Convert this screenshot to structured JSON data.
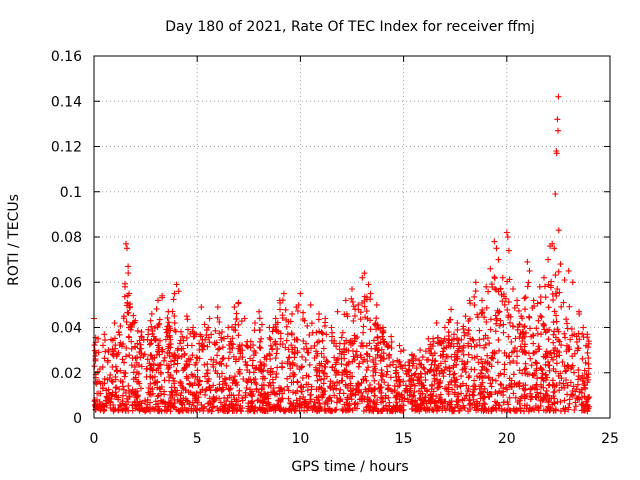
{
  "chart_data": {
    "type": "scatter",
    "title": "Day 180 of 2021, Rate Of TEC Index for receiver ffmj",
    "xlabel": "GPS time / hours",
    "ylabel": "ROTI / TECUs",
    "xlim": [
      0,
      25
    ],
    "ylim": [
      0,
      0.16
    ],
    "xticks": [
      0,
      5,
      10,
      15,
      20,
      25
    ],
    "xtick_labels": [
      "0",
      "5",
      "10",
      "15",
      "20",
      "25"
    ],
    "yticks": [
      0,
      0.02,
      0.04,
      0.06,
      0.08,
      0.1,
      0.12,
      0.14,
      0.16
    ],
    "ytick_labels": [
      "0",
      "0.02",
      "0.04",
      "0.06",
      "0.08",
      "0.1",
      "0.12",
      "0.14",
      "0.16"
    ],
    "grid": true,
    "marker": "+",
    "color": "#ff0000",
    "data_range_hours": [
      0,
      24
    ],
    "series": [
      {
        "name": "ROTI",
        "points": [
          [
            0.0,
            0.044
          ],
          [
            0.2,
            0.035
          ],
          [
            0.5,
            0.037
          ],
          [
            0.7,
            0.03
          ],
          [
            1.0,
            0.042
          ],
          [
            1.2,
            0.038
          ],
          [
            1.45,
            0.045
          ],
          [
            1.5,
            0.058
          ],
          [
            1.55,
            0.077
          ],
          [
            1.6,
            0.075
          ],
          [
            1.65,
            0.067
          ],
          [
            1.7,
            0.055
          ],
          [
            1.75,
            0.049
          ],
          [
            2.0,
            0.043
          ],
          [
            2.3,
            0.038
          ],
          [
            2.8,
            0.046
          ],
          [
            3.1,
            0.052
          ],
          [
            3.3,
            0.054
          ],
          [
            3.6,
            0.047
          ],
          [
            3.9,
            0.055
          ],
          [
            4.0,
            0.059
          ],
          [
            4.1,
            0.056
          ],
          [
            4.5,
            0.045
          ],
          [
            4.8,
            0.04
          ],
          [
            5.2,
            0.049
          ],
          [
            5.6,
            0.044
          ],
          [
            6.0,
            0.049
          ],
          [
            6.2,
            0.038
          ],
          [
            6.5,
            0.04
          ],
          [
            6.8,
            0.049
          ],
          [
            7.0,
            0.051
          ],
          [
            7.3,
            0.044
          ],
          [
            7.8,
            0.042
          ],
          [
            8.0,
            0.047
          ],
          [
            8.5,
            0.04
          ],
          [
            8.8,
            0.044
          ],
          [
            9.0,
            0.052
          ],
          [
            9.2,
            0.055
          ],
          [
            9.6,
            0.046
          ],
          [
            9.8,
            0.049
          ],
          [
            10.0,
            0.055
          ],
          [
            10.2,
            0.043
          ],
          [
            10.5,
            0.05
          ],
          [
            10.9,
            0.046
          ],
          [
            11.2,
            0.044
          ],
          [
            11.5,
            0.04
          ],
          [
            11.8,
            0.047
          ],
          [
            12.2,
            0.052
          ],
          [
            12.5,
            0.057
          ],
          [
            12.8,
            0.05
          ],
          [
            13.0,
            0.062
          ],
          [
            13.1,
            0.064
          ],
          [
            13.3,
            0.059
          ],
          [
            13.4,
            0.055
          ],
          [
            13.7,
            0.05
          ],
          [
            14.0,
            0.04
          ],
          [
            14.4,
            0.036
          ],
          [
            14.8,
            0.032
          ],
          [
            15.0,
            0.03
          ],
          [
            15.4,
            0.028
          ],
          [
            15.8,
            0.03
          ],
          [
            16.2,
            0.035
          ],
          [
            16.6,
            0.042
          ],
          [
            17.0,
            0.04
          ],
          [
            17.3,
            0.048
          ],
          [
            17.6,
            0.042
          ],
          [
            18.0,
            0.045
          ],
          [
            18.2,
            0.052
          ],
          [
            18.5,
            0.06
          ],
          [
            18.8,
            0.052
          ],
          [
            19.0,
            0.058
          ],
          [
            19.2,
            0.066
          ],
          [
            19.4,
            0.078
          ],
          [
            19.5,
            0.075
          ],
          [
            19.6,
            0.07
          ],
          [
            19.8,
            0.062
          ],
          [
            19.9,
            0.05
          ],
          [
            20.0,
            0.082
          ],
          [
            20.05,
            0.08
          ],
          [
            20.1,
            0.074
          ],
          [
            20.3,
            0.057
          ],
          [
            20.5,
            0.052
          ],
          [
            20.7,
            0.045
          ],
          [
            21.0,
            0.069
          ],
          [
            21.1,
            0.065
          ],
          [
            21.3,
            0.052
          ],
          [
            21.6,
            0.058
          ],
          [
            21.8,
            0.062
          ],
          [
            22.0,
            0.07
          ],
          [
            22.1,
            0.076
          ],
          [
            22.2,
            0.077
          ],
          [
            22.3,
            0.075
          ],
          [
            22.35,
            0.099
          ],
          [
            22.4,
            0.118
          ],
          [
            22.42,
            0.117
          ],
          [
            22.45,
            0.132
          ],
          [
            22.48,
            0.127
          ],
          [
            22.5,
            0.142
          ],
          [
            22.52,
            0.083
          ],
          [
            22.6,
            0.068
          ],
          [
            22.8,
            0.061
          ],
          [
            23.0,
            0.065
          ],
          [
            23.2,
            0.06
          ],
          [
            23.5,
            0.047
          ],
          [
            23.7,
            0.04
          ],
          [
            23.9,
            0.037
          ]
        ]
      }
    ]
  }
}
